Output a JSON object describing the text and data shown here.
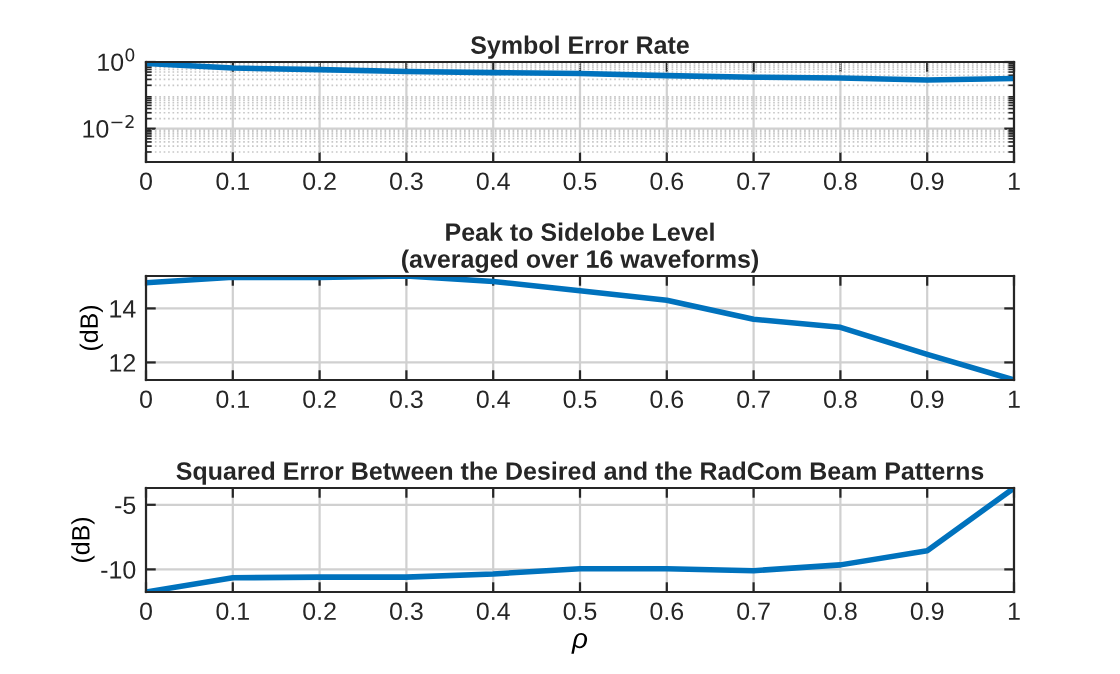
{
  "chart_data": [
    {
      "type": "line",
      "title": "Symbol Error Rate",
      "log": "y",
      "grid": true,
      "x": [
        0,
        0.1,
        0.2,
        0.3,
        0.4,
        0.5,
        0.6,
        0.7,
        0.8,
        0.9,
        1
      ],
      "series": [
        {
          "color": "#0072bd",
          "values": [
            0.9,
            0.66,
            0.59,
            0.52,
            0.48,
            0.45,
            0.39,
            0.35,
            0.33,
            0.29,
            0.32
          ]
        }
      ],
      "xlim": [
        0,
        1
      ],
      "xticks": [
        0,
        0.1,
        0.2,
        0.3,
        0.4,
        0.5,
        0.6,
        0.7,
        0.8,
        0.9,
        1
      ],
      "ylim": [
        0.001,
        1
      ],
      "yticks": [
        {
          "value": 1,
          "label": "10$^{0}$"
        },
        {
          "value": 0.01,
          "label": "10$^{−2}$"
        }
      ]
    },
    {
      "type": "line",
      "title": "Peak to Sidelobe Level\n(averaged over 16 waveforms)",
      "ylabel": "(dB)",
      "grid": true,
      "x": [
        0,
        0.1,
        0.2,
        0.3,
        0.4,
        0.5,
        0.6,
        0.7,
        0.8,
        0.9,
        1
      ],
      "series": [
        {
          "color": "#0072bd",
          "values": [
            14.95,
            15.15,
            15.15,
            15.2,
            15.0,
            14.65,
            14.3,
            13.6,
            13.3,
            12.3,
            11.35
          ]
        }
      ],
      "xlim": [
        0,
        1
      ],
      "xticks": [
        0,
        0.1,
        0.2,
        0.3,
        0.4,
        0.5,
        0.6,
        0.7,
        0.8,
        0.9,
        1
      ],
      "ylim": [
        11.35,
        15.2
      ],
      "yticks": [
        12,
        14
      ]
    },
    {
      "type": "line",
      "title": "Squared Error Between the Desired and the RadCom Beam Patterns",
      "ylabel": "(dB)",
      "xlabel": "ρ",
      "grid": true,
      "x": [
        0,
        0.1,
        0.2,
        0.3,
        0.4,
        0.5,
        0.6,
        0.7,
        0.8,
        0.9,
        1
      ],
      "series": [
        {
          "color": "#0072bd",
          "values": [
            -11.75,
            -10.65,
            -10.6,
            -10.6,
            -10.35,
            -9.95,
            -9.95,
            -10.1,
            -9.65,
            -8.55,
            -3.7
          ]
        }
      ],
      "xlim": [
        0,
        1
      ],
      "xticks": [
        0,
        0.1,
        0.2,
        0.3,
        0.4,
        0.5,
        0.6,
        0.7,
        0.8,
        0.9,
        1
      ],
      "ylim": [
        -11.75,
        -3.7
      ],
      "yticks": [
        -10,
        -5
      ]
    }
  ]
}
